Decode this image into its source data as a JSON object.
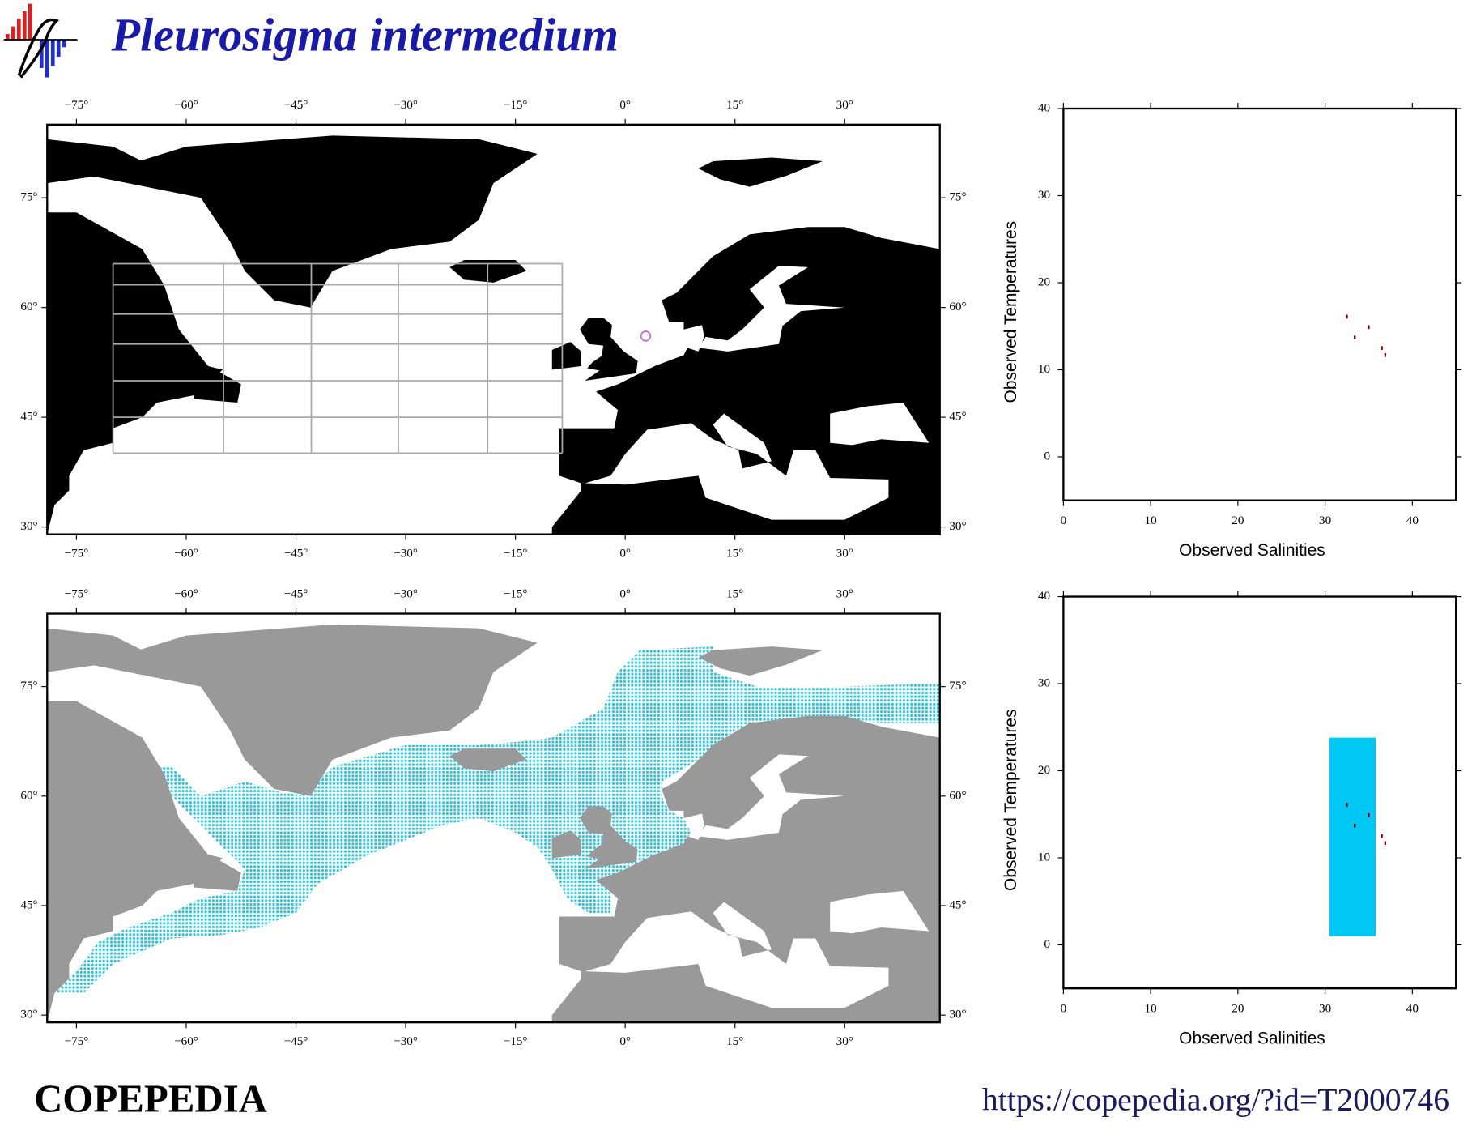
{
  "title": "Pleurosigma intermedium",
  "footer": {
    "left": "COPEPEDIA",
    "right": "https://copepedia.org/?id=T2000746"
  },
  "chart_data": [
    {
      "type": "map",
      "land_color": "#000000",
      "point_color": "#cc66cc",
      "xlim": [
        -79,
        43
      ],
      "ylim": [
        29,
        85
      ],
      "xticks": [
        {
          "value": -75,
          "label": "−75°"
        },
        {
          "value": -60,
          "label": "−60°"
        },
        {
          "value": -45,
          "label": "−45°"
        },
        {
          "value": -30,
          "label": "−30°"
        },
        {
          "value": -15,
          "label": "−15°"
        },
        {
          "value": 0,
          "label": "0°"
        },
        {
          "value": 15,
          "label": "15°"
        },
        {
          "value": 30,
          "label": "30°"
        }
      ],
      "yticks": [
        {
          "value": 30,
          "label": "30°"
        },
        {
          "value": 45,
          "label": "45°"
        },
        {
          "value": 60,
          "label": "60°"
        },
        {
          "value": 75,
          "label": "75°"
        }
      ],
      "points": {
        "x": [
          2.8
        ],
        "y": [
          56.1
        ]
      }
    },
    {
      "type": "map",
      "land_color": "#999999",
      "range_color": "#29c4dc",
      "xlim": [
        -79,
        43
      ],
      "ylim": [
        29,
        85
      ],
      "xticks": [
        {
          "value": -75,
          "label": "−75°"
        },
        {
          "value": -60,
          "label": "−60°"
        },
        {
          "value": -45,
          "label": "−45°"
        },
        {
          "value": -30,
          "label": "−30°"
        },
        {
          "value": -15,
          "label": "−15°"
        },
        {
          "value": 0,
          "label": "0°"
        },
        {
          "value": 15,
          "label": "15°"
        },
        {
          "value": 30,
          "label": "30°"
        }
      ],
      "yticks": [
        {
          "value": 30,
          "label": "30°"
        },
        {
          "value": 45,
          "label": "45°"
        },
        {
          "value": 60,
          "label": "60°"
        },
        {
          "value": 75,
          "label": "75°"
        }
      ]
    },
    {
      "type": "scatter",
      "xlabel": "Observed Salinities",
      "ylabel": "Observed Temperatures",
      "color": "#8b0000",
      "xlim": [
        0,
        45
      ],
      "ylim": [
        -5,
        40
      ],
      "xticks": [
        0,
        10,
        20,
        30,
        40
      ],
      "yticks": [
        0,
        10,
        20,
        30,
        40
      ],
      "x": [
        32.5,
        33.4,
        35.0,
        36.5,
        36.9
      ],
      "y": [
        16.1,
        13.7,
        14.9,
        12.5,
        11.7
      ]
    },
    {
      "type": "scatter",
      "xlabel": "Observed Salinities",
      "ylabel": "Observed Temperatures",
      "color": "#8b0000",
      "range_color": "#00c8f5",
      "xlim": [
        0,
        45
      ],
      "ylim": [
        -5,
        40
      ],
      "xticks": [
        0,
        10,
        20,
        30,
        40
      ],
      "yticks": [
        0,
        10,
        20,
        30,
        40
      ],
      "x": [
        32.5,
        33.4,
        35.0,
        36.5,
        36.9
      ],
      "y": [
        16.1,
        13.7,
        14.9,
        12.5,
        11.7
      ],
      "range": {
        "x": [
          30.5,
          35.8
        ],
        "y": [
          1,
          23.8
        ]
      }
    }
  ]
}
